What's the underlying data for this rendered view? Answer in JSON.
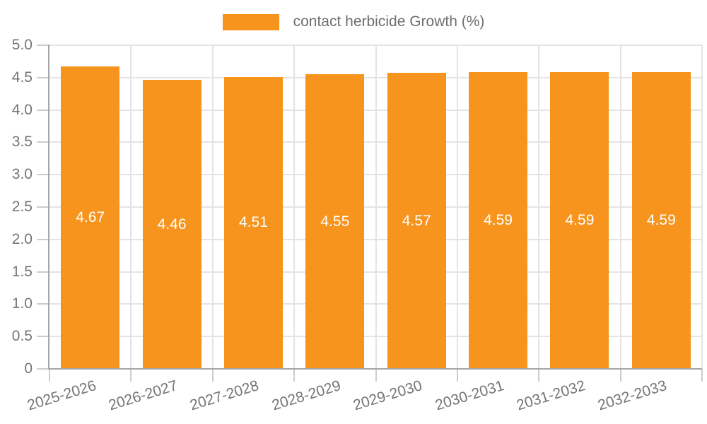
{
  "legend": {
    "label": "contact herbicide Growth (%)"
  },
  "chart_data": {
    "type": "bar",
    "title": "",
    "categories": [
      "2025-2026",
      "2026-2027",
      "2027-2028",
      "2028-2029",
      "2029-2030",
      "2030-2031",
      "2031-2032",
      "2032-2033"
    ],
    "series": [
      {
        "name": "contact herbicide Growth (%)",
        "values": [
          4.67,
          4.46,
          4.51,
          4.55,
          4.57,
          4.59,
          4.59,
          4.59
        ],
        "value_labels": [
          "4.67",
          "4.46",
          "4.51",
          "4.55",
          "4.57",
          "4.59",
          "4.59",
          "4.59"
        ]
      }
    ],
    "xlabel": "",
    "ylabel": "",
    "ylim": [
      0,
      5
    ],
    "ytick_labels": [
      "0",
      "0.5",
      "1.0",
      "1.5",
      "2.0",
      "2.5",
      "3.0",
      "3.5",
      "4.0",
      "4.5",
      "5.0"
    ],
    "grid": true,
    "legend_position": "top-center",
    "bar_label_position": "middle-inside"
  },
  "colors": {
    "bar": "#F7941E",
    "bar_label": "#FFFFFF",
    "grid": "#E4E4E4",
    "axis": "#A6A6A6",
    "tick": "#CCCCCC",
    "text": "#757575"
  }
}
